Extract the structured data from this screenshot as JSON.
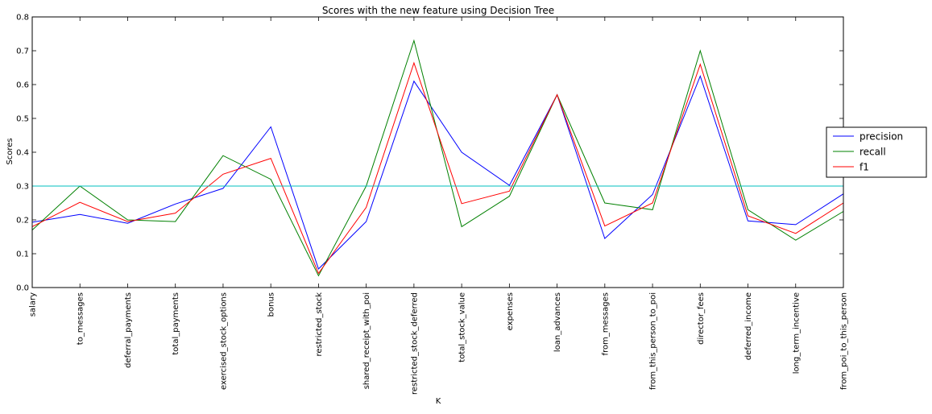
{
  "chart_data": {
    "type": "line",
    "title": "Scores with the new feature using Decision Tree",
    "xlabel": "K",
    "ylabel": "Scores",
    "ylim": [
      0.0,
      0.8
    ],
    "yticks": [
      "0.0",
      "0.1",
      "0.2",
      "0.3",
      "0.4",
      "0.5",
      "0.6",
      "0.7",
      "0.8"
    ],
    "grid": false,
    "legend_position": "outside-right",
    "categories": [
      "salary",
      "to_messages",
      "deferral_payments",
      "total_payments",
      "exercised_stock_options",
      "bonus",
      "restricted_stock",
      "shared_receipt_with_poi",
      "restricted_stock_deferred",
      "total_stock_value",
      "expenses",
      "loan_advances",
      "from_messages",
      "from_this_person_to_poi",
      "director_fees",
      "deferred_income",
      "long_term_incentive",
      "from_poi_to_this_person"
    ],
    "series": [
      {
        "name": "precision",
        "color": "#0000ff",
        "values": [
          0.193,
          0.216,
          0.19,
          0.247,
          0.293,
          0.475,
          0.055,
          0.195,
          0.61,
          0.4,
          0.302,
          0.57,
          0.145,
          0.275,
          0.625,
          0.197,
          0.186,
          0.277
        ]
      },
      {
        "name": "recall",
        "color": "#008000",
        "values": [
          0.17,
          0.3,
          0.2,
          0.195,
          0.39,
          0.32,
          0.035,
          0.3,
          0.73,
          0.18,
          0.27,
          0.57,
          0.25,
          0.23,
          0.7,
          0.23,
          0.14,
          0.225
        ]
      },
      {
        "name": "f1",
        "color": "#ff0000",
        "values": [
          0.18,
          0.252,
          0.195,
          0.22,
          0.335,
          0.382,
          0.042,
          0.237,
          0.664,
          0.248,
          0.285,
          0.57,
          0.182,
          0.25,
          0.66,
          0.212,
          0.16,
          0.25
        ]
      }
    ],
    "reference_line": {
      "value": 0.3,
      "color": "#00bfbf"
    }
  }
}
